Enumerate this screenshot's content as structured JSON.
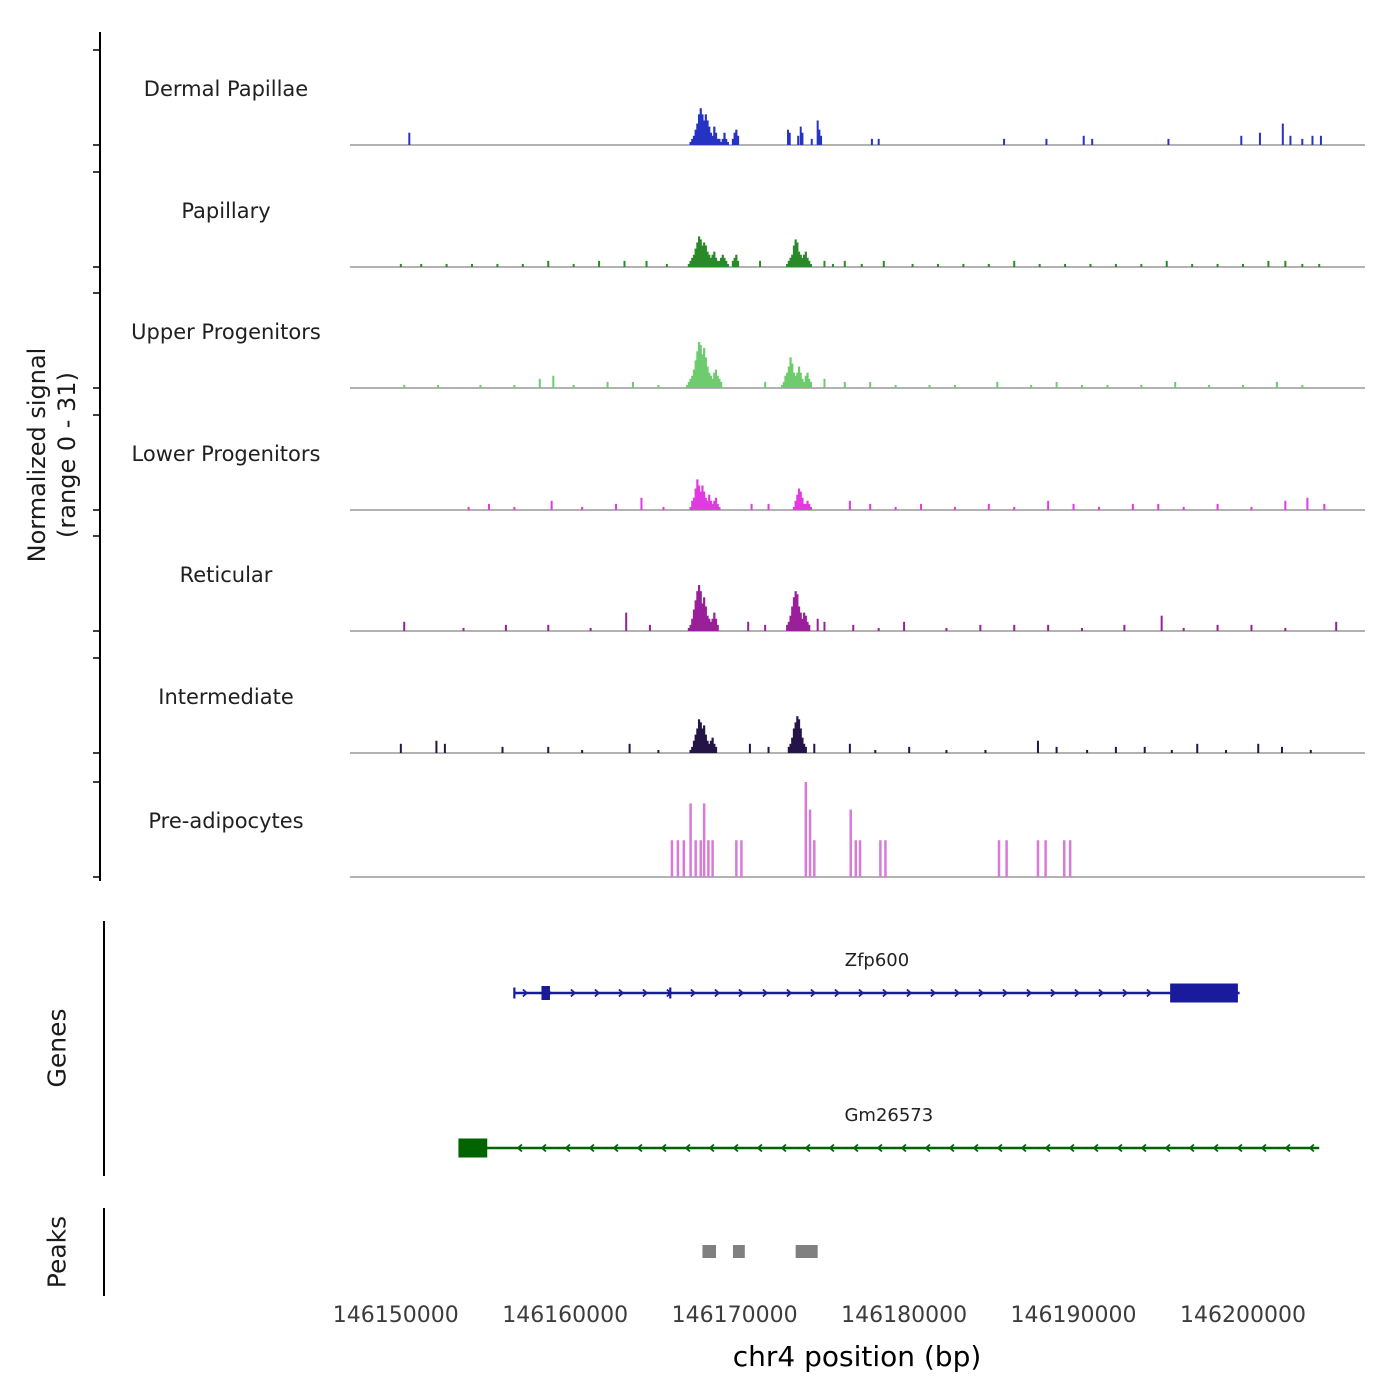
{
  "figure": {
    "y_axis_label_line1": "Normalized signal",
    "y_axis_label_line2": "(range 0 - 31)",
    "genes_section_label": "Genes",
    "peaks_section_label": "Peaks"
  },
  "chart_data": {
    "type": "area",
    "xlabel": "chr4 position (bp)",
    "ylabel": "Normalized signal (range 0 - 31)",
    "signal_range": [
      0,
      31
    ],
    "x_range_bp": [
      146147300,
      146207200
    ],
    "x_ticks": [
      146150000,
      146160000,
      146170000,
      146180000,
      146190000,
      146200000
    ],
    "tracks": [
      {
        "label": "Dermal Papillae",
        "color": "#2633c4",
        "regions": [
          {
            "start_bp": 146167400,
            "step_bp": 100,
            "heights": [
              1,
              2,
              3,
              5,
              7,
              10,
              12,
              10,
              8,
              10,
              8,
              6,
              4,
              3,
              6,
              4,
              2,
              2,
              1,
              2,
              4,
              2,
              1
            ]
          },
          {
            "start_bp": 146169900,
            "step_bp": 100,
            "heights": [
              2,
              4,
              5,
              3
            ]
          }
        ],
        "spikes": [
          [
            146150800,
            4
          ],
          [
            146173150,
            5
          ],
          [
            146173250,
            4
          ],
          [
            146173750,
            3
          ],
          [
            146173900,
            6
          ],
          [
            146174000,
            4
          ],
          [
            146174550,
            2
          ],
          [
            146174900,
            8
          ],
          [
            146175000,
            5
          ],
          [
            146175100,
            3
          ],
          [
            146178100,
            2
          ],
          [
            146178500,
            2
          ],
          [
            146185900,
            2
          ],
          [
            146188400,
            2
          ],
          [
            146190600,
            3
          ],
          [
            146191100,
            2
          ],
          [
            146195600,
            2
          ],
          [
            146199900,
            3
          ],
          [
            146201000,
            4
          ],
          [
            146202350,
            7
          ],
          [
            146202800,
            3
          ],
          [
            146203500,
            2
          ],
          [
            146204100,
            3
          ],
          [
            146204600,
            3
          ]
        ]
      },
      {
        "label": "Papillary",
        "color": "#2a8a2a",
        "regions": [
          {
            "start_bp": 146167300,
            "step_bp": 100,
            "heights": [
              1,
              2,
              3,
              4,
              6,
              8,
              10,
              9,
              7,
              8,
              7,
              5,
              4,
              3,
              4,
              5,
              3,
              2,
              2,
              3,
              4,
              3,
              2,
              1
            ]
          },
          {
            "start_bp": 146169900,
            "step_bp": 100,
            "heights": [
              2,
              3,
              4,
              2
            ]
          },
          {
            "start_bp": 146173100,
            "step_bp": 100,
            "heights": [
              1,
              2,
              3,
              4,
              7,
              9,
              8,
              5,
              4,
              3,
              4,
              5,
              3,
              2,
              1
            ]
          }
        ],
        "spikes": [
          [
            146150300,
            1
          ],
          [
            146151500,
            1
          ],
          [
            146153000,
            1
          ],
          [
            146154500,
            1
          ],
          [
            146156000,
            1
          ],
          [
            146157500,
            1
          ],
          [
            146159000,
            2
          ],
          [
            146160500,
            1
          ],
          [
            146162000,
            2
          ],
          [
            146163500,
            2
          ],
          [
            146164800,
            2
          ],
          [
            146166000,
            1
          ],
          [
            146171500,
            2
          ],
          [
            146175300,
            2
          ],
          [
            146175800,
            1
          ],
          [
            146176500,
            2
          ],
          [
            146177500,
            1
          ],
          [
            146178800,
            2
          ],
          [
            146180500,
            1
          ],
          [
            146182000,
            1
          ],
          [
            146183500,
            1
          ],
          [
            146185000,
            1
          ],
          [
            146186500,
            2
          ],
          [
            146188000,
            1
          ],
          [
            146189500,
            1
          ],
          [
            146191000,
            1
          ],
          [
            146192500,
            1
          ],
          [
            146194000,
            1
          ],
          [
            146195500,
            2
          ],
          [
            146197000,
            1
          ],
          [
            146198500,
            1
          ],
          [
            146200000,
            1
          ],
          [
            146201500,
            2
          ],
          [
            146202500,
            2
          ],
          [
            146203500,
            1
          ],
          [
            146204500,
            1
          ]
        ]
      },
      {
        "label": "Upper Progenitors",
        "color": "#6ecb6e",
        "regions": [
          {
            "start_bp": 146167200,
            "step_bp": 100,
            "heights": [
              1,
              2,
              3,
              4,
              6,
              9,
              12,
              15,
              14,
              11,
              13,
              10,
              7,
              5,
              4,
              3,
              5,
              6,
              4,
              3,
              2
            ]
          },
          {
            "start_bp": 146172800,
            "step_bp": 100,
            "heights": [
              1,
              2,
              4,
              5,
              7,
              10,
              8,
              5,
              4,
              5,
              7,
              5,
              3,
              2,
              4,
              5,
              3,
              2
            ]
          }
        ],
        "spikes": [
          [
            146150500,
            1
          ],
          [
            146152500,
            1
          ],
          [
            146155000,
            1
          ],
          [
            146157000,
            1
          ],
          [
            146158500,
            3
          ],
          [
            146159300,
            4
          ],
          [
            146160500,
            1
          ],
          [
            146162500,
            2
          ],
          [
            146164000,
            2
          ],
          [
            146165500,
            1
          ],
          [
            146171800,
            2
          ],
          [
            146175300,
            3
          ],
          [
            146176500,
            2
          ],
          [
            146178000,
            2
          ],
          [
            146179500,
            1
          ],
          [
            146181500,
            1
          ],
          [
            146183000,
            1
          ],
          [
            146185500,
            2
          ],
          [
            146187500,
            1
          ],
          [
            146189000,
            2
          ],
          [
            146190500,
            1
          ],
          [
            146192000,
            1
          ],
          [
            146194000,
            1
          ],
          [
            146196000,
            2
          ],
          [
            146198000,
            1
          ],
          [
            146200000,
            1
          ],
          [
            146202000,
            2
          ],
          [
            146203500,
            1
          ]
        ]
      },
      {
        "label": "Lower Progenitors",
        "color": "#e23ae2",
        "regions": [
          {
            "start_bp": 146167400,
            "step_bp": 100,
            "heights": [
              1,
              3,
              4,
              7,
              10,
              8,
              6,
              8,
              6,
              4,
              3,
              5,
              3,
              2,
              3,
              4,
              2,
              1
            ]
          },
          {
            "start_bp": 146173500,
            "step_bp": 100,
            "heights": [
              1,
              3,
              5,
              7,
              6,
              4,
              2,
              2,
              3,
              2,
              1
            ]
          }
        ],
        "spikes": [
          [
            146154300,
            1
          ],
          [
            146155500,
            2
          ],
          [
            146157000,
            1
          ],
          [
            146159200,
            3
          ],
          [
            146161000,
            1
          ],
          [
            146163000,
            2
          ],
          [
            146164500,
            4
          ],
          [
            146165800,
            1
          ],
          [
            146171000,
            2
          ],
          [
            146172000,
            2
          ],
          [
            146176800,
            3
          ],
          [
            146178000,
            2
          ],
          [
            146179500,
            1
          ],
          [
            146181000,
            2
          ],
          [
            146183000,
            1
          ],
          [
            146185000,
            2
          ],
          [
            146186500,
            1
          ],
          [
            146188500,
            3
          ],
          [
            146190000,
            2
          ],
          [
            146191500,
            1
          ],
          [
            146193500,
            2
          ],
          [
            146195000,
            2
          ],
          [
            146196500,
            1
          ],
          [
            146198500,
            2
          ],
          [
            146200500,
            1
          ],
          [
            146202500,
            3
          ],
          [
            146203800,
            4
          ],
          [
            146204800,
            2
          ]
        ]
      },
      {
        "label": "Reticular",
        "color": "#9a1f9a",
        "regions": [
          {
            "start_bp": 146167300,
            "step_bp": 100,
            "heights": [
              1,
              2,
              4,
              7,
              10,
              13,
              15,
              13,
              9,
              11,
              8,
              5,
              4,
              3,
              4,
              6,
              4,
              2
            ]
          },
          {
            "start_bp": 146173100,
            "step_bp": 100,
            "heights": [
              2,
              3,
              5,
              8,
              11,
              13,
              12,
              8,
              6,
              4,
              6,
              5,
              3,
              2
            ]
          }
        ],
        "spikes": [
          [
            146150500,
            3
          ],
          [
            146154000,
            1
          ],
          [
            146156500,
            2
          ],
          [
            146159000,
            2
          ],
          [
            146161500,
            1
          ],
          [
            146163600,
            6
          ],
          [
            146165000,
            2
          ],
          [
            146170800,
            3
          ],
          [
            146171800,
            2
          ],
          [
            146174900,
            4
          ],
          [
            146175300,
            3
          ],
          [
            146177000,
            2
          ],
          [
            146178500,
            1
          ],
          [
            146180000,
            3
          ],
          [
            146182500,
            1
          ],
          [
            146184500,
            2
          ],
          [
            146186500,
            2
          ],
          [
            146188500,
            2
          ],
          [
            146190500,
            1
          ],
          [
            146193000,
            2
          ],
          [
            146195200,
            5
          ],
          [
            146196500,
            1
          ],
          [
            146198500,
            2
          ],
          [
            146200500,
            2
          ],
          [
            146202500,
            1
          ],
          [
            146205500,
            3
          ]
        ]
      },
      {
        "label": "Intermediate",
        "color": "#241447",
        "regions": [
          {
            "start_bp": 146167400,
            "step_bp": 100,
            "heights": [
              1,
              2,
              4,
              6,
              8,
              11,
              10,
              8,
              9,
              6,
              4,
              3,
              4,
              5,
              3,
              2
            ]
          },
          {
            "start_bp": 146173200,
            "step_bp": 100,
            "heights": [
              2,
              3,
              5,
              8,
              10,
              12,
              11,
              8,
              5,
              3,
              2
            ]
          }
        ],
        "spikes": [
          [
            146150300,
            3
          ],
          [
            146152400,
            4
          ],
          [
            146152900,
            3
          ],
          [
            146156300,
            2
          ],
          [
            146159000,
            2
          ],
          [
            146161000,
            1
          ],
          [
            146163800,
            3
          ],
          [
            146165500,
            1
          ],
          [
            146170900,
            3
          ],
          [
            146172000,
            2
          ],
          [
            146174700,
            3
          ],
          [
            146176800,
            3
          ],
          [
            146178300,
            1
          ],
          [
            146180300,
            2
          ],
          [
            146182500,
            1
          ],
          [
            146184800,
            1
          ],
          [
            146187900,
            4
          ],
          [
            146189000,
            2
          ],
          [
            146190800,
            1
          ],
          [
            146192500,
            2
          ],
          [
            146194200,
            2
          ],
          [
            146195800,
            1
          ],
          [
            146197300,
            3
          ],
          [
            146199000,
            1
          ],
          [
            146200900,
            3
          ],
          [
            146202300,
            2
          ],
          [
            146204000,
            1
          ]
        ]
      },
      {
        "label": "Pre-adipocytes",
        "color": "#d97ad9",
        "spike_width": 2.5,
        "regions": [],
        "spikes": [
          [
            146166300,
            12
          ],
          [
            146166650,
            12
          ],
          [
            146167000,
            12
          ],
          [
            146167400,
            24
          ],
          [
            146167700,
            12
          ],
          [
            146168000,
            12
          ],
          [
            146168200,
            24
          ],
          [
            146168450,
            12
          ],
          [
            146168700,
            12
          ],
          [
            146170100,
            12
          ],
          [
            146170400,
            12
          ],
          [
            146174200,
            31
          ],
          [
            146174450,
            22
          ],
          [
            146174700,
            12
          ],
          [
            146176850,
            22
          ],
          [
            146177150,
            12
          ],
          [
            146177400,
            12
          ],
          [
            146178600,
            12
          ],
          [
            146178900,
            12
          ],
          [
            146185600,
            12
          ],
          [
            146186050,
            12
          ],
          [
            146187900,
            12
          ],
          [
            146188350,
            12
          ],
          [
            146189450,
            12
          ],
          [
            146189800,
            12
          ]
        ]
      }
    ],
    "genes": [
      {
        "name": "Zfp600",
        "color": "#1a1a9c",
        "strand": "+",
        "start": 146157000,
        "end": 146199800,
        "thin_exons": [
          [
            146158600,
            146159100
          ]
        ],
        "thick_exons": [
          [
            146195700,
            146199700
          ]
        ],
        "exon_ticks": [
          146157000,
          146166200
        ]
      },
      {
        "name": "Gm26573",
        "color": "#006400",
        "strand": "-",
        "start": 146153700,
        "end": 146204500,
        "thin_exons": [],
        "thick_exons": [
          [
            146153700,
            146155400
          ]
        ],
        "exon_ticks": []
      }
    ],
    "peaks": {
      "color": "#808080",
      "intervals": [
        [
          146168100,
          146168900
        ],
        [
          146169900,
          146170600
        ],
        [
          146173600,
          146174900
        ]
      ]
    }
  }
}
